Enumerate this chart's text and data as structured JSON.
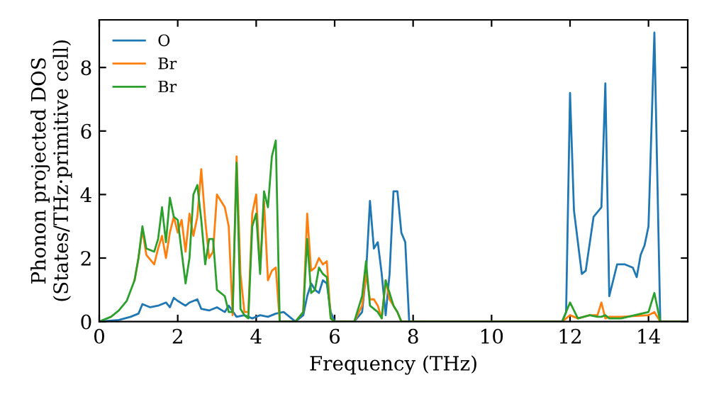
{
  "chart_data": {
    "type": "line",
    "xlabel": "Frequency (THz)",
    "ylabel": "Phonon projected DOS\n(States/THz·primitive cell)",
    "xlim": [
      0,
      15
    ],
    "ylim": [
      0,
      9.5
    ],
    "xticks": [
      0,
      2,
      4,
      6,
      8,
      10,
      12,
      14
    ],
    "yticks": [
      0,
      2,
      4,
      6,
      8
    ],
    "legend": "top left",
    "grid": false,
    "series": [
      {
        "name": "O",
        "color": "#1f77b4",
        "x": [
          0,
          0.5,
          0.8,
          1.0,
          1.1,
          1.3,
          1.5,
          1.7,
          1.8,
          1.9,
          2.0,
          2.2,
          2.3,
          2.5,
          2.6,
          2.8,
          3.0,
          3.2,
          3.3,
          3.5,
          3.7,
          3.9,
          4.1,
          4.3,
          4.5,
          4.7,
          5.0,
          5.2,
          5.3,
          5.4,
          5.5,
          5.6,
          5.7,
          5.8,
          5.9,
          6.0,
          6.1,
          6.5,
          6.7,
          6.8,
          6.9,
          7.0,
          7.1,
          7.2,
          7.3,
          7.4,
          7.5,
          7.6,
          7.7,
          7.8,
          7.9,
          8.0,
          11.8,
          11.9,
          12.0,
          12.1,
          12.3,
          12.4,
          12.6,
          12.8,
          12.9,
          13.0,
          13.2,
          13.4,
          13.6,
          13.7,
          13.8,
          13.9,
          14.0,
          14.15,
          14.3,
          14.5,
          15.0
        ],
        "values": [
          0,
          0.05,
          0.15,
          0.25,
          0.55,
          0.45,
          0.5,
          0.6,
          0.45,
          0.75,
          0.65,
          0.5,
          0.6,
          0.7,
          0.4,
          0.35,
          0.45,
          0.3,
          0.5,
          0.15,
          0.2,
          0.1,
          0.2,
          0.15,
          0.25,
          0.3,
          0,
          0.2,
          0.8,
          1.2,
          1.0,
          0.9,
          1.3,
          1.2,
          0.3,
          0,
          0,
          0,
          0.3,
          1.5,
          3.8,
          2.3,
          2.5,
          1.5,
          0.2,
          1.5,
          4.1,
          4.1,
          2.8,
          2.5,
          0,
          0,
          0,
          0.3,
          7.2,
          3.5,
          1.5,
          1.6,
          3.3,
          3.6,
          7.5,
          0.8,
          1.8,
          1.8,
          1.7,
          1.4,
          2.1,
          2.4,
          3.0,
          9.1,
          0,
          0,
          0
        ]
      },
      {
        "name": "Br",
        "color": "#ff7f0e",
        "x": [
          0.9,
          1.0,
          1.1,
          1.2,
          1.4,
          1.5,
          1.6,
          1.7,
          1.8,
          1.9,
          2.0,
          2.1,
          2.2,
          2.3,
          2.4,
          2.5,
          2.6,
          2.7,
          2.8,
          2.9,
          3.0,
          3.2,
          3.3,
          3.4,
          3.5,
          3.6,
          3.7,
          3.8,
          3.9,
          4.0,
          4.1,
          4.2,
          4.3,
          4.4,
          4.5,
          4.6,
          4.7,
          5.0,
          5.2,
          5.3,
          5.4,
          5.5,
          5.6,
          5.7,
          5.8,
          5.9,
          6.0,
          6.1,
          6.5,
          6.7,
          6.8,
          6.9,
          7.0,
          7.1,
          7.2,
          7.3,
          7.4,
          7.5,
          7.6,
          7.7,
          7.8,
          8.0,
          11.8,
          12.0,
          12.2,
          12.5,
          12.7,
          12.8,
          12.9,
          13.0,
          13.3,
          14.0,
          14.15,
          14.3,
          15.0
        ],
        "values": [
          1.3,
          2.0,
          2.9,
          2.1,
          1.8,
          2.3,
          2.7,
          2.0,
          2.8,
          3.3,
          2.8,
          3.2,
          2.2,
          3.4,
          2.7,
          3.3,
          4.8,
          3.2,
          2.0,
          2.2,
          4.0,
          3.6,
          3.0,
          0.2,
          5.2,
          1.5,
          0.3,
          0.3,
          3.4,
          4.0,
          1.6,
          3.8,
          1.3,
          1.6,
          1.7,
          0,
          0,
          0,
          0.3,
          3.4,
          1.6,
          1.7,
          2.0,
          1.8,
          1.9,
          0.1,
          0,
          0,
          0,
          0.5,
          1.5,
          0.7,
          0.7,
          0.5,
          0.1,
          1.3,
          0.7,
          0.5,
          0.3,
          0,
          0,
          0,
          0,
          0.2,
          0.1,
          0.2,
          0.2,
          0.6,
          0.1,
          0.15,
          0.15,
          0.2,
          0.3,
          0,
          0
        ]
      },
      {
        "name": "Br",
        "color": "#2ca02c",
        "x": [
          0,
          0.3,
          0.5,
          0.7,
          0.9,
          1.0,
          1.1,
          1.2,
          1.4,
          1.5,
          1.6,
          1.7,
          1.8,
          1.9,
          2.0,
          2.1,
          2.2,
          2.3,
          2.4,
          2.5,
          2.6,
          2.7,
          2.8,
          2.9,
          3.0,
          3.2,
          3.3,
          3.4,
          3.5,
          3.6,
          3.7,
          3.8,
          3.9,
          4.0,
          4.1,
          4.2,
          4.3,
          4.4,
          4.5,
          4.6,
          4.7,
          5.0,
          5.2,
          5.3,
          5.4,
          5.5,
          5.6,
          5.7,
          5.8,
          5.9,
          6.0,
          6.1,
          6.5,
          6.7,
          6.8,
          6.9,
          7.0,
          7.1,
          7.2,
          7.3,
          7.4,
          7.5,
          7.6,
          7.7,
          7.8,
          8.0,
          11.8,
          12.0,
          12.2,
          12.5,
          12.7,
          12.8,
          12.9,
          13.0,
          13.3,
          14.0,
          14.15,
          14.3,
          15.0
        ],
        "values": [
          0,
          0.15,
          0.35,
          0.65,
          1.3,
          2.0,
          3.0,
          2.3,
          2.2,
          2.6,
          3.6,
          2.5,
          3.9,
          3.3,
          3.2,
          2.2,
          1.2,
          2.0,
          4.0,
          4.3,
          3.2,
          1.8,
          2.6,
          2.6,
          1.0,
          0.8,
          0.3,
          0.3,
          5.0,
          0.4,
          0.2,
          0.1,
          3.0,
          3.4,
          1.5,
          4.1,
          3.6,
          5.2,
          5.7,
          0,
          0,
          0,
          0.3,
          2.6,
          0.9,
          1.0,
          1.7,
          1.5,
          1.4,
          0.1,
          0,
          0,
          0,
          0.8,
          1.9,
          0.5,
          0.4,
          0.3,
          0.1,
          1.3,
          0.9,
          0.5,
          0.3,
          0,
          0,
          0,
          0,
          0.6,
          0.1,
          0.2,
          0.15,
          0.15,
          0.2,
          0.1,
          0.1,
          0.3,
          0.9,
          0,
          0
        ]
      }
    ]
  }
}
